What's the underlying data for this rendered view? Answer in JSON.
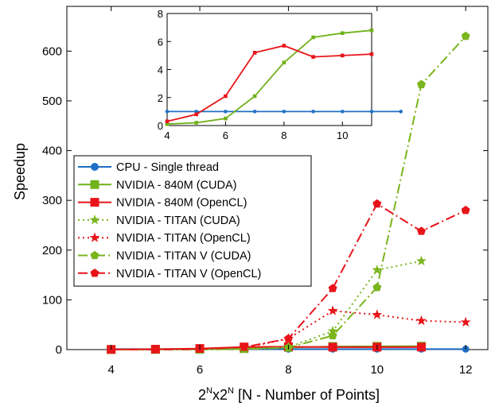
{
  "chart_data": {
    "type": "line",
    "xlabel": {
      "base": "2",
      "sup1": "N",
      "mid": "x2",
      "sup2": "N",
      "rest": " [N - Number of Points]"
    },
    "ylabel": "Speedup",
    "xlim": [
      3.0,
      12.5
    ],
    "ylim": [
      0,
      690
    ],
    "xticks": [
      "4",
      "6",
      "8",
      "10",
      "12"
    ],
    "yticks": [
      "0",
      "100",
      "200",
      "300",
      "400",
      "500",
      "600"
    ],
    "grid": false,
    "legend_position": "center-left",
    "series": [
      {
        "name": "CPU - Single thread",
        "color": "#1f6fc5",
        "marker": "circle",
        "dash": "solid",
        "x": [
          4,
          5,
          6,
          7,
          8,
          9,
          10,
          11,
          12
        ],
        "y": [
          1,
          1,
          1,
          1,
          1,
          1,
          1,
          1,
          1
        ]
      },
      {
        "name": "NVIDIA - 840M (CUDA)",
        "color": "#6fb21a",
        "marker": "square",
        "dash": "solid",
        "x": [
          4,
          5,
          6,
          7,
          8,
          9,
          10,
          11
        ],
        "y": [
          0.1,
          0.2,
          0.5,
          2.1,
          4.5,
          6.3,
          6.6,
          6.8
        ]
      },
      {
        "name": "NVIDIA - 840M (OpenCL)",
        "color": "#e8141a",
        "marker": "square",
        "dash": "solid",
        "x": [
          4,
          5,
          6,
          7,
          8,
          9,
          10,
          11
        ],
        "y": [
          0.3,
          0.8,
          2.1,
          5.2,
          5.7,
          4.9,
          5.0,
          5.1
        ]
      },
      {
        "name": "NVIDIA - TITAN (CUDA)",
        "color": "#7ab51d",
        "marker": "star",
        "dash": "dot",
        "x": [
          7,
          8,
          9,
          10,
          11
        ],
        "y": [
          1,
          5,
          37,
          160,
          178
        ]
      },
      {
        "name": "NVIDIA - TITAN (OpenCL)",
        "color": "#e8141a",
        "marker": "star",
        "dash": "dot",
        "x": [
          7,
          8,
          9,
          10,
          11,
          12
        ],
        "y": [
          3,
          22,
          78,
          70,
          58,
          55
        ]
      },
      {
        "name": "NVIDIA - TITAN V (CUDA)",
        "color": "#7ab51d",
        "marker": "pentagon",
        "dash": "dashdot",
        "x": [
          4,
          5,
          6,
          7,
          8,
          9,
          10,
          11,
          12
        ],
        "y": [
          0,
          0,
          0,
          1,
          4,
          28,
          125,
          533,
          630
        ]
      },
      {
        "name": "NVIDIA - TITAN V (OpenCL)",
        "color": "#e8141a",
        "marker": "pentagon",
        "dash": "dashdot",
        "x": [
          4,
          5,
          6,
          7,
          8,
          9,
          10,
          11,
          12
        ],
        "y": [
          0,
          0,
          1,
          5,
          22,
          123,
          293,
          238,
          280
        ]
      }
    ],
    "inset": {
      "xlim": [
        4,
        11
      ],
      "ylim": [
        0,
        8
      ],
      "xticks": [
        "4",
        "6",
        "8",
        "10"
      ],
      "yticks": [
        "0",
        "2",
        "4",
        "6",
        "8"
      ],
      "series_shown": [
        0,
        1,
        2
      ]
    }
  }
}
